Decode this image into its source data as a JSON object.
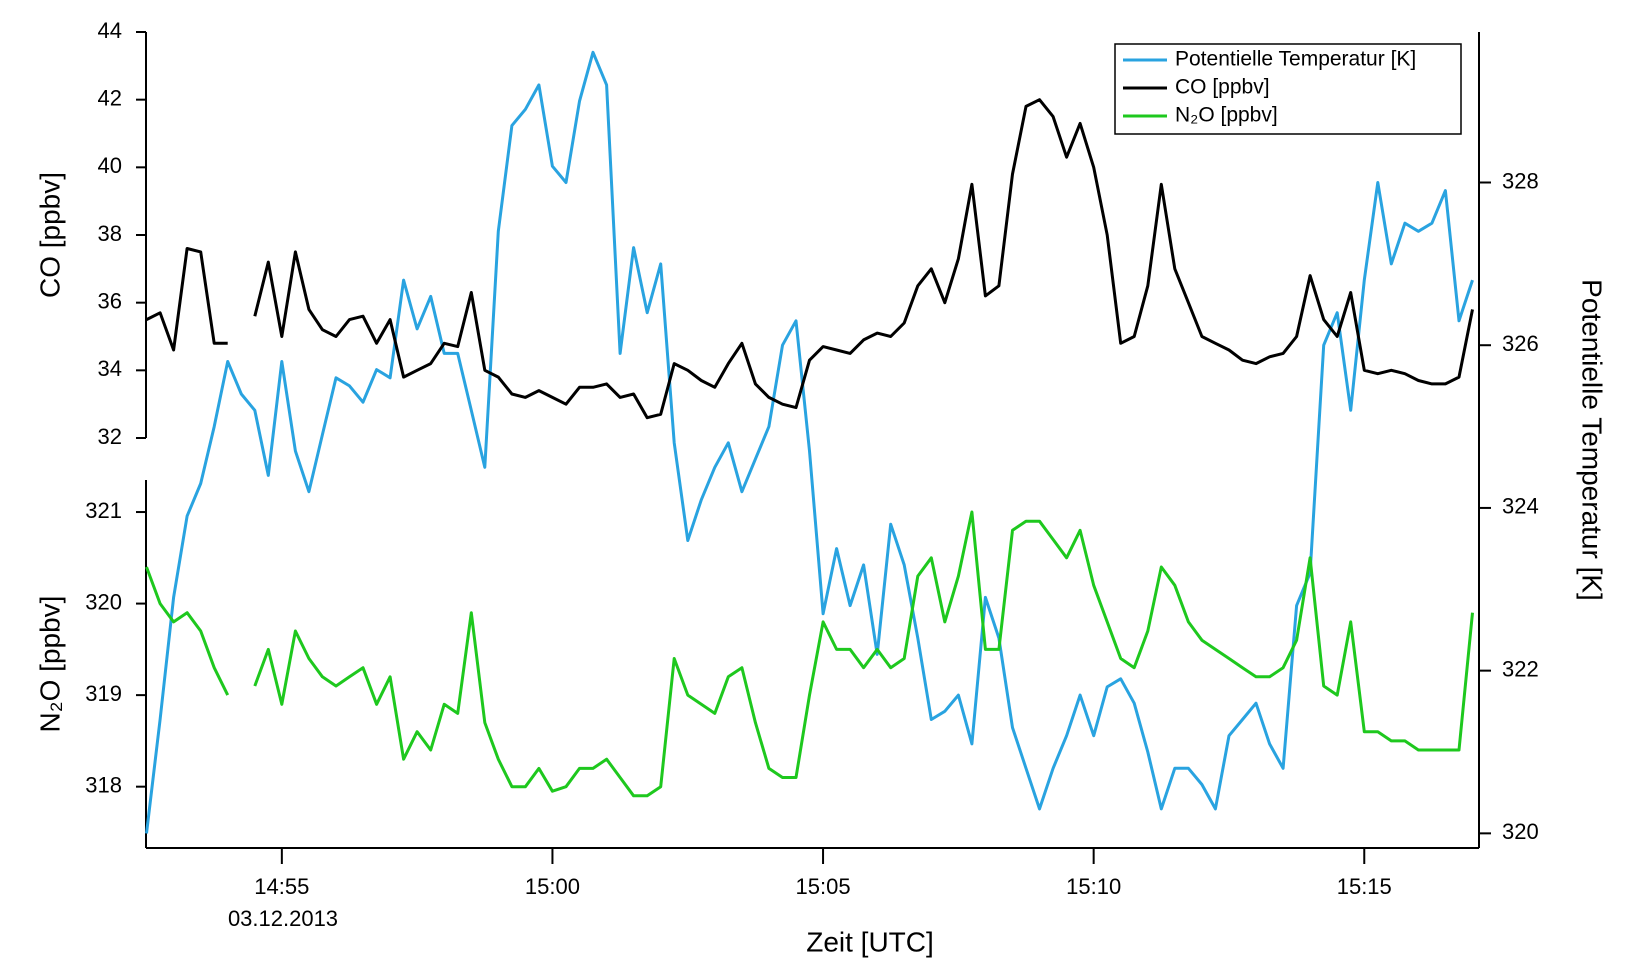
{
  "chart_data": {
    "type": "line",
    "x_label": "Zeit [UTC]",
    "date_label": "03.12.2013",
    "y_label": "CO [ppbv]",
    "y2_label": "Potentielle Temperatur [K]",
    "y3_label": "N₂O [ppbv]",
    "xlim": [
      892.49,
      917.12
    ],
    "xticks": [
      {
        "value": 895,
        "label": "14:55"
      },
      {
        "value": 900,
        "label": "15:00"
      },
      {
        "value": 905,
        "label": "15:05"
      },
      {
        "value": 910,
        "label": "15:10"
      },
      {
        "value": 915,
        "label": "15:15"
      }
    ],
    "ylim": [
      32,
      44
    ],
    "yticks": [
      32,
      34,
      36,
      38,
      40,
      42,
      44
    ],
    "y3lim": [
      317.33,
      321.35
    ],
    "y3ticks": [
      318,
      319,
      320,
      321
    ],
    "y2lim": [
      319.82,
      329.85
    ],
    "y2ticks": [
      320,
      322,
      324,
      326,
      328
    ],
    "legend": "upper right",
    "x": [
      892.5,
      892.75,
      893,
      893.25,
      893.5,
      893.75,
      894,
      894.25,
      894.5,
      894.75,
      895,
      895.25,
      895.5,
      895.75,
      896,
      896.25,
      896.5,
      896.75,
      897,
      897.25,
      897.5,
      897.75,
      898,
      898.25,
      898.5,
      898.75,
      899,
      899.25,
      899.5,
      899.75,
      900,
      900.25,
      900.5,
      900.75,
      901,
      901.25,
      901.5,
      901.75,
      902,
      902.25,
      902.5,
      902.75,
      903,
      903.25,
      903.5,
      903.75,
      904,
      904.25,
      904.5,
      904.75,
      905,
      905.25,
      905.5,
      905.75,
      906,
      906.25,
      906.5,
      906.75,
      907,
      907.25,
      907.5,
      907.75,
      908,
      908.25,
      908.5,
      908.75,
      909,
      909.25,
      909.5,
      909.75,
      910,
      910.25,
      910.5,
      910.75,
      911,
      911.25,
      911.5,
      911.75,
      912,
      912.25,
      912.5,
      912.75,
      913,
      913.25,
      913.5,
      913.75,
      914,
      914.25,
      914.5,
      914.75,
      915,
      915.25,
      915.5,
      915.75,
      916,
      916.25,
      916.5,
      916.75,
      917
    ],
    "series": [
      {
        "name": "Potentielle Temperatur [K]",
        "color": "#29a3e0",
        "axis": "y2",
        "values": [
          320.0,
          321.4,
          322.9,
          323.9,
          324.3,
          325.0,
          325.8,
          325.4,
          325.2,
          324.4,
          325.8,
          324.7,
          324.2,
          324.9,
          325.6,
          325.5,
          325.3,
          325.7,
          325.6,
          326.8,
          326.2,
          326.6,
          325.9,
          325.9,
          325.2,
          324.5,
          327.4,
          328.7,
          328.9,
          329.2,
          328.2,
          328.0,
          329.0,
          329.6,
          329.2,
          325.9,
          327.2,
          326.4,
          327.0,
          324.8,
          323.6,
          324.1,
          324.5,
          324.8,
          324.2,
          324.6,
          325.0,
          326.0,
          326.3,
          324.7,
          322.7,
          323.5,
          322.8,
          323.3,
          322.2,
          323.8,
          323.3,
          322.4,
          321.4,
          321.5,
          321.7,
          321.1,
          322.9,
          322.4,
          321.3,
          320.8,
          320.3,
          320.8,
          321.2,
          321.7,
          321.2,
          321.8,
          321.9,
          321.6,
          321.0,
          320.3,
          320.8,
          320.8,
          320.6,
          320.3,
          321.2,
          321.4,
          321.6,
          321.1,
          320.8,
          322.8,
          323.2,
          326.0,
          326.4,
          325.2,
          326.8,
          328.0,
          327.0,
          327.5,
          327.4,
          327.5,
          327.9,
          326.3,
          326.8
        ]
      },
      {
        "name": "CO [ppbv]",
        "color": "#000000",
        "axis": "y",
        "values": [
          35.5,
          35.7,
          34.6,
          37.6,
          37.5,
          34.8,
          34.8,
          null,
          35.6,
          37.2,
          35.0,
          37.5,
          35.8,
          35.2,
          35.0,
          35.5,
          35.6,
          34.8,
          35.5,
          33.8,
          34.0,
          34.2,
          34.8,
          34.7,
          36.3,
          34.0,
          33.8,
          33.3,
          33.2,
          33.4,
          33.2,
          33.0,
          33.5,
          33.5,
          33.6,
          33.2,
          33.3,
          32.6,
          32.7,
          34.2,
          34.0,
          33.7,
          33.5,
          34.2,
          34.8,
          33.6,
          33.2,
          33.0,
          32.9,
          34.3,
          34.7,
          34.6,
          34.5,
          34.9,
          35.1,
          35.0,
          35.4,
          36.5,
          37.0,
          36.0,
          37.3,
          39.5,
          36.2,
          36.5,
          39.8,
          41.8,
          42.0,
          41.5,
          40.3,
          41.3,
          40.0,
          38.0,
          34.8,
          35.0,
          36.5,
          39.5,
          37.0,
          36.0,
          35.0,
          34.8,
          34.6,
          34.3,
          34.2,
          34.4,
          34.5,
          35.0,
          36.8,
          35.5,
          35.0,
          36.3,
          34.0,
          33.9,
          34.0,
          33.9,
          33.7,
          33.6,
          33.6,
          33.8,
          35.8
        ]
      },
      {
        "name": "N₂O [ppbv]",
        "color": "#1ec81e",
        "axis": "y3",
        "values": [
          320.4,
          320.0,
          319.8,
          319.9,
          319.7,
          319.3,
          319.0,
          null,
          319.1,
          319.5,
          318.9,
          319.7,
          319.4,
          319.2,
          319.1,
          319.2,
          319.3,
          318.9,
          319.2,
          318.3,
          318.6,
          318.4,
          318.9,
          318.8,
          319.9,
          318.7,
          318.3,
          318.0,
          318.0,
          318.2,
          317.95,
          318.0,
          318.2,
          318.2,
          318.3,
          318.1,
          317.9,
          317.9,
          318.0,
          319.4,
          319.0,
          318.9,
          318.8,
          319.2,
          319.3,
          318.7,
          318.2,
          318.1,
          318.1,
          319.0,
          319.8,
          319.5,
          319.5,
          319.3,
          319.5,
          319.3,
          319.4,
          320.3,
          320.5,
          319.8,
          320.3,
          321.0,
          319.5,
          319.5,
          320.8,
          320.9,
          320.9,
          320.7,
          320.5,
          320.8,
          320.2,
          319.8,
          319.4,
          319.3,
          319.7,
          320.4,
          320.2,
          319.8,
          319.6,
          319.5,
          319.4,
          319.3,
          319.2,
          319.2,
          319.3,
          319.6,
          320.5,
          319.1,
          319.0,
          319.8,
          318.6,
          318.6,
          318.5,
          318.5,
          318.4,
          318.4,
          318.4,
          318.4,
          319.9
        ]
      }
    ]
  }
}
